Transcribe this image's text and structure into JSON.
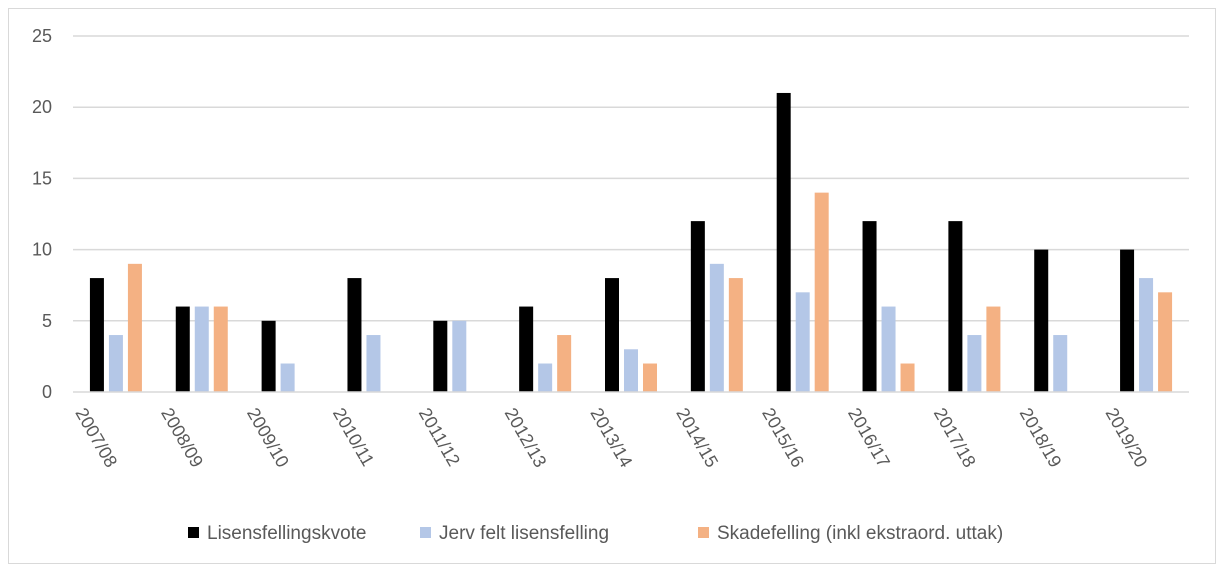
{
  "chart_data": {
    "type": "bar",
    "title": "",
    "xlabel": "",
    "ylabel": "",
    "ylim": [
      0,
      25
    ],
    "yticks": [
      0,
      5,
      10,
      15,
      20,
      25
    ],
    "grid": true,
    "legend_position": "bottom",
    "categories": [
      "2007/08",
      "2008/09",
      "2009/10",
      "2010/11",
      "2011/12",
      "2012/13",
      "2013/14",
      "2014/15",
      "2015/16",
      "2016/17",
      "2017/18",
      "2018/19",
      "2019/20"
    ],
    "series": [
      {
        "name": "Lisensfellingskvote",
        "color": "#000000",
        "values": [
          8,
          6,
          5,
          8,
          5,
          6,
          8,
          12,
          21,
          12,
          12,
          10,
          10
        ]
      },
      {
        "name": "Jerv felt lisensfelling",
        "color": "#b4c7e7",
        "values": [
          4,
          6,
          2,
          4,
          5,
          2,
          3,
          9,
          7,
          6,
          4,
          4,
          8
        ]
      },
      {
        "name": "Skadefelling (inkl ekstraord. uttak)",
        "color": "#f4b183",
        "values": [
          9,
          6,
          0,
          0,
          0,
          4,
          2,
          8,
          14,
          2,
          6,
          0,
          7
        ]
      }
    ]
  }
}
